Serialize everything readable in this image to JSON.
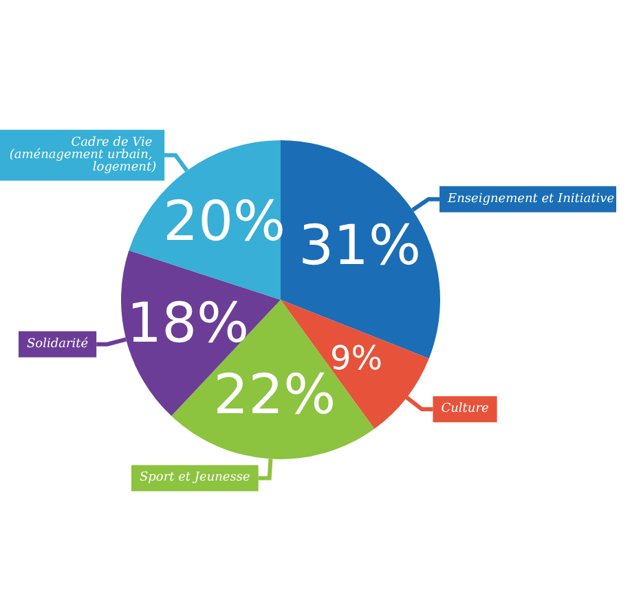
{
  "chart_data": {
    "type": "pie",
    "categories": [
      "Enseignement et Initiative",
      "Culture",
      "Sport et Jeunesse",
      "Solidarité",
      "Cadre de Vie (aménagement urbain, logement)"
    ],
    "values": [
      31,
      9,
      22,
      18,
      20
    ],
    "value_labels": [
      "31%",
      "9%",
      "22%",
      "18%",
      "20%"
    ],
    "colors": [
      "#1b6db6",
      "#e6533a",
      "#8cc33f",
      "#6c3d97",
      "#37afd6"
    ],
    "legend": false
  }
}
